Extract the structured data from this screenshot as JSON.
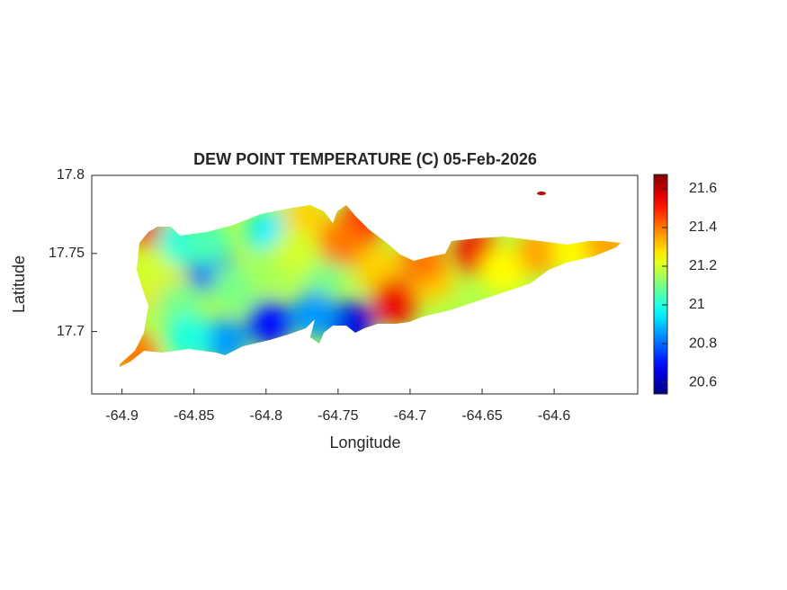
{
  "chart_data": {
    "type": "heatmap",
    "title": "DEW POINT TEMPERATURE (C) 05-Feb-2026",
    "x_label": "Longitude",
    "y_label": "Latitude",
    "xlim": [
      -64.921,
      -64.542
    ],
    "ylim": [
      17.66,
      17.8
    ],
    "xticks": [
      -64.9,
      -64.85,
      -64.8,
      -64.75,
      -64.7,
      -64.65,
      -64.6
    ],
    "yticks": [
      17.7,
      17.75,
      17.8
    ],
    "colormap": "jet",
    "clim": [
      20.54,
      21.674
    ],
    "cticks": [
      20.6,
      20.8,
      21,
      21.2,
      21.4,
      21.6
    ],
    "x": [
      -64.8788,
      -64.86,
      -64.8381,
      -64.8725,
      -64.8819,
      -64.86,
      -64.8913,
      -64.8225,
      -64.7975,
      -64.7975,
      -64.7975,
      -64.7725,
      -64.76,
      -64.7413,
      -64.7663,
      -64.735,
      -64.7225,
      -64.71,
      -64.685,
      -64.6913,
      -64.6538,
      -64.635,
      -64.61,
      -64.585,
      -64.5631,
      -64.8288,
      -64.8538,
      -64.8413,
      -64.7788,
      -64.7475,
      -64.6088
    ],
    "y": [
      17.7598,
      17.7569,
      17.7397,
      17.7282,
      17.7397,
      17.7167,
      17.6851,
      17.7282,
      17.7626,
      17.7397,
      17.7052,
      17.7713,
      17.7397,
      17.7052,
      17.7109,
      17.7684,
      17.7397,
      17.7195,
      17.7339,
      17.7454,
      17.7511,
      17.7397,
      17.7511,
      17.7511,
      17.7557,
      17.6937,
      17.6966,
      17.7569,
      17.7511,
      17.7569,
      17.7885
    ],
    "values": [
      21.55,
      21.0,
      20.75,
      21.3,
      21.2,
      21.1,
      21.4,
      21.1,
      20.95,
      21.15,
      20.7,
      21.3,
      21.1,
      20.65,
      20.85,
      21.5,
      21.3,
      21.55,
      21.3,
      21.4,
      21.55,
      21.25,
      21.35,
      21.25,
      21.35,
      20.85,
      21.0,
      21.05,
      21.2,
      21.4,
      21.6
    ]
  }
}
